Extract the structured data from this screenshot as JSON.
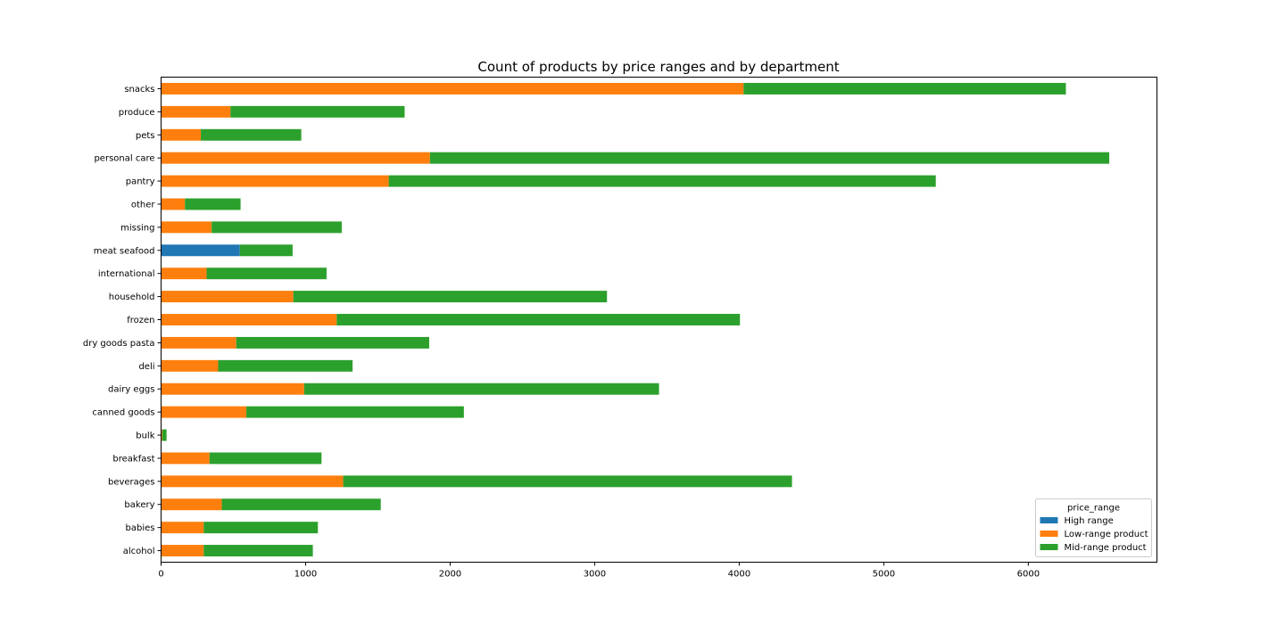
{
  "chart_data": {
    "type": "bar",
    "orientation": "horizontal",
    "stacked": true,
    "title": "Count of products by price ranges and by department",
    "xlabel": "",
    "ylabel": "",
    "xlim": [
      0,
      6890
    ],
    "xticks": [
      0,
      1000,
      2000,
      3000,
      4000,
      5000,
      6000
    ],
    "grid": false,
    "legend_title": "price_range",
    "legend_position": "lower-right",
    "categories": [
      "alcohol",
      "babies",
      "bakery",
      "beverages",
      "breakfast",
      "bulk",
      "canned goods",
      "dairy eggs",
      "deli",
      "dry goods pasta",
      "frozen",
      "household",
      "international",
      "meat seafood",
      "missing",
      "other",
      "pantry",
      "personal care",
      "pets",
      "produce",
      "snacks"
    ],
    "series": [
      {
        "name": "High range",
        "color": "#1f77b4",
        "values": [
          0,
          0,
          0,
          0,
          0,
          0,
          0,
          0,
          0,
          0,
          0,
          0,
          0,
          545,
          0,
          0,
          0,
          0,
          0,
          0,
          0
        ]
      },
      {
        "name": "Low-range product",
        "color": "#ff7f0e",
        "values": [
          295,
          295,
          420,
          1260,
          335,
          8,
          590,
          990,
          395,
          520,
          1215,
          915,
          315,
          0,
          350,
          165,
          1575,
          1860,
          275,
          480,
          4030
        ]
      },
      {
        "name": "Mid-range product",
        "color": "#2ca02c",
        "values": [
          755,
          790,
          1100,
          3105,
          775,
          30,
          1505,
          2455,
          930,
          1335,
          2790,
          2170,
          830,
          365,
          900,
          385,
          3785,
          4700,
          695,
          1205,
          2230
        ]
      }
    ]
  }
}
